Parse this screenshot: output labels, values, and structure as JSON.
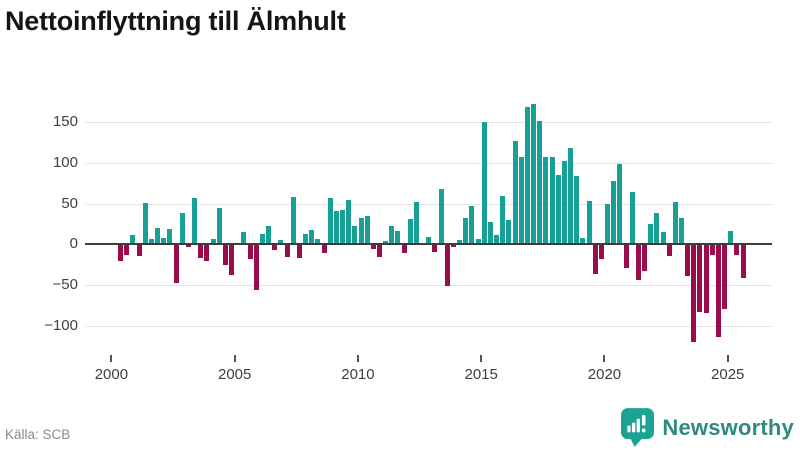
{
  "title": "Nettoinflyttning till Älmhult",
  "source": "Källa: SCB",
  "logo": {
    "text": "Newsworthy"
  },
  "chart_data": {
    "type": "bar",
    "title": "Nettoinflyttning till Älmhult",
    "start": "2000-Q1",
    "frequency": "quarterly",
    "values": [
      0,
      -20,
      -13,
      11,
      -14,
      51,
      6,
      20,
      8,
      19,
      -47,
      39,
      -3,
      57,
      -17,
      -20,
      6,
      45,
      -26,
      -38,
      0,
      15,
      -18,
      -56,
      13,
      23,
      -7,
      5,
      -15,
      58,
      -17,
      13,
      18,
      7,
      -11,
      57,
      41,
      42,
      54,
      22,
      33,
      35,
      -6,
      -15,
      4,
      22,
      16,
      -11,
      31,
      52,
      0,
      9,
      -9,
      68,
      -51,
      -3,
      5,
      32,
      47,
      6,
      151,
      28,
      12,
      59,
      30,
      127,
      108,
      169,
      173,
      152,
      107,
      107,
      85,
      103,
      118,
      84,
      8,
      53,
      -36,
      -18,
      50,
      78,
      99,
      -29,
      65,
      -44,
      -33,
      25,
      39,
      15,
      -14,
      52,
      33,
      -39,
      -120,
      -83,
      -85,
      -13,
      -114,
      -80,
      16,
      -13,
      -41
    ],
    "x_tick_labels": [
      "2000",
      "2005",
      "2010",
      "2015",
      "2020",
      "2025"
    ],
    "y_ticks": [
      150,
      100,
      50,
      0,
      -50,
      -100
    ],
    "ylim": [
      -130,
      185
    ],
    "grid": true,
    "legend": false,
    "colors": {
      "positive": "#16a096",
      "negative": "#9b0c4d"
    }
  }
}
